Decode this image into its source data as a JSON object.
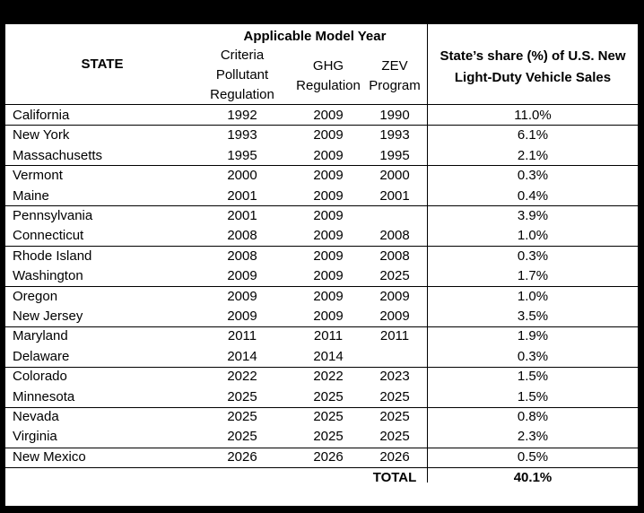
{
  "header": {
    "state": "STATE",
    "applicable_model_year": "Applicable Model Year",
    "criteria_line1": "Criteria",
    "criteria_line2": "Pollutant",
    "criteria_line3": "Regulation",
    "ghg_line1": "GHG",
    "ghg_line2": "Regulation",
    "zev_line1": "ZEV",
    "zev_line2": "Program",
    "share_line1": "State’s share (%) of U.S. New",
    "share_line2": "Light-Duty Vehicle Sales"
  },
  "rows": [
    {
      "state": "California",
      "criteria": "1992",
      "ghg": "2009",
      "zev": "1990",
      "share": "11.0%"
    },
    {
      "state": "New York",
      "criteria": "1993",
      "ghg": "2009",
      "zev": "1993",
      "share": "6.1%"
    },
    {
      "state": "Massachusetts",
      "criteria": "1995",
      "ghg": "2009",
      "zev": "1995",
      "share": "2.1%"
    },
    {
      "state": "Vermont",
      "criteria": "2000",
      "ghg": "2009",
      "zev": "2000",
      "share": "0.3%"
    },
    {
      "state": "Maine",
      "criteria": "2001",
      "ghg": "2009",
      "zev": "2001",
      "share": "0.4%"
    },
    {
      "state": "Pennsylvania",
      "criteria": "2001",
      "ghg": "2009",
      "zev": "",
      "share": "3.9%"
    },
    {
      "state": "Connecticut",
      "criteria": "2008",
      "ghg": "2009",
      "zev": "2008",
      "share": "1.0%"
    },
    {
      "state": "Rhode Island",
      "criteria": "2008",
      "ghg": "2009",
      "zev": "2008",
      "share": "0.3%"
    },
    {
      "state": "Washington",
      "criteria": "2009",
      "ghg": "2009",
      "zev": "2025",
      "share": "1.7%"
    },
    {
      "state": "Oregon",
      "criteria": "2009",
      "ghg": "2009",
      "zev": "2009",
      "share": "1.0%"
    },
    {
      "state": "New Jersey",
      "criteria": "2009",
      "ghg": "2009",
      "zev": "2009",
      "share": "3.5%"
    },
    {
      "state": "Maryland",
      "criteria": "2011",
      "ghg": "2011",
      "zev": "2011",
      "share": "1.9%"
    },
    {
      "state": "Delaware",
      "criteria": "2014",
      "ghg": "2014",
      "zev": "",
      "share": "0.3%"
    },
    {
      "state": "Colorado",
      "criteria": "2022",
      "ghg": "2022",
      "zev": "2023",
      "share": "1.5%"
    },
    {
      "state": "Minnesota",
      "criteria": "2025",
      "ghg": "2025",
      "zev": "2025",
      "share": "1.5%"
    },
    {
      "state": "Nevada",
      "criteria": "2025",
      "ghg": "2025",
      "zev": "2025",
      "share": "0.8%"
    },
    {
      "state": "Virginia",
      "criteria": "2025",
      "ghg": "2025",
      "zev": "2025",
      "share": "2.3%"
    },
    {
      "state": "New Mexico",
      "criteria": "2026",
      "ghg": "2026",
      "zev": "2026",
      "share": "0.5%"
    }
  ],
  "total": {
    "label": "TOTAL",
    "value": "40.1%"
  }
}
